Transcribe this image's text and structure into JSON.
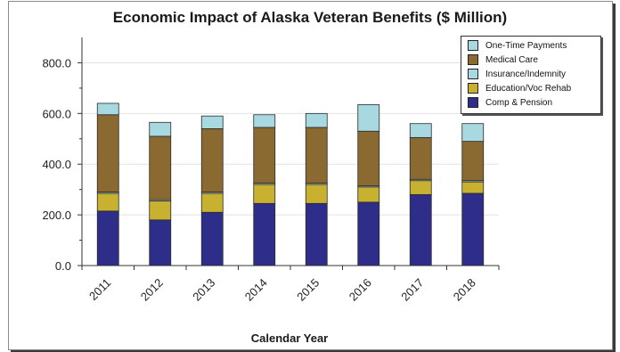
{
  "chart_data": {
    "type": "bar",
    "stacked": true,
    "title": "Economic Impact of Alaska Veteran Benefits ($ Million)",
    "xlabel": "Calendar Year",
    "ylabel": "",
    "categories": [
      "2011",
      "2012",
      "2013",
      "2014",
      "2015",
      "2016",
      "2017",
      "2018"
    ],
    "ylim": [
      0,
      900
    ],
    "yticks": [
      0,
      200,
      400,
      600,
      800
    ],
    "ytick_labels": [
      "0.0",
      "200.0",
      "400.0",
      "600.0",
      "800.0"
    ],
    "grid": "horizontal",
    "legend_position": "top-right",
    "series": [
      {
        "name": "Comp & Pension",
        "color": "#2e2e8a",
        "values": [
          215,
          180,
          210,
          245,
          245,
          250,
          280,
          285
        ]
      },
      {
        "name": "Education/Voc Rehab",
        "color": "#c8b030",
        "values": [
          70,
          75,
          75,
          75,
          75,
          60,
          55,
          45
        ]
      },
      {
        "name": "Insurance/Indemnity",
        "color": "#a8d8e0",
        "values": [
          5,
          5,
          5,
          5,
          5,
          5,
          5,
          5
        ]
      },
      {
        "name": "Medical Care",
        "color": "#8a6a30",
        "values": [
          305,
          250,
          250,
          220,
          220,
          215,
          165,
          155
        ]
      },
      {
        "name": "One-Time Payments",
        "color": "#a8d8e0",
        "values": [
          45,
          55,
          50,
          50,
          55,
          105,
          55,
          70
        ]
      }
    ],
    "legend_order": [
      "One-Time Payments",
      "Medical Care",
      "Insurance/Indemnity",
      "Education/Voc Rehab",
      "Comp & Pension"
    ]
  }
}
